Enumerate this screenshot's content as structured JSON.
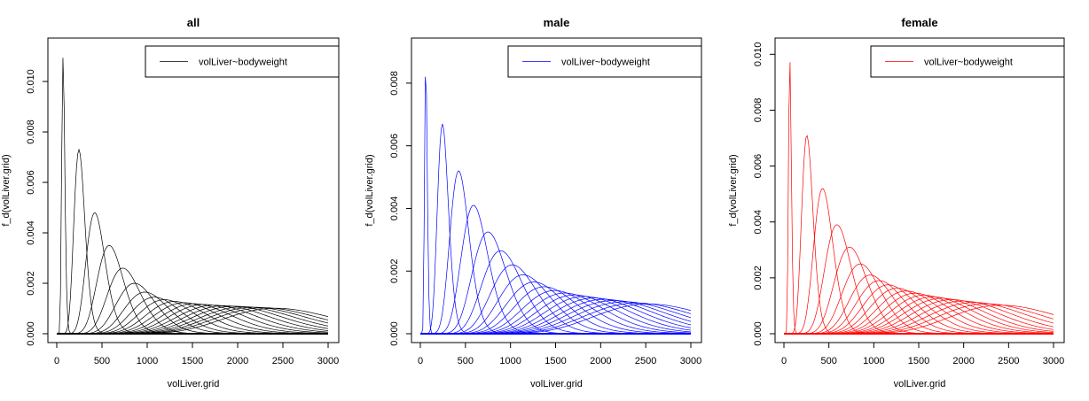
{
  "chart_data": [
    {
      "type": "line",
      "title": "all",
      "xlabel": "volLiver.grid",
      "ylabel": "f_d(volLiver.grid)",
      "xlim": [
        0,
        3000
      ],
      "ylim": [
        0,
        0.0113
      ],
      "xticks": [
        "0",
        "500",
        "1000",
        "1500",
        "2000",
        "2500",
        "3000"
      ],
      "yticks": [
        "0.000",
        "0.002",
        "0.004",
        "0.006",
        "0.008",
        "0.010"
      ],
      "legend": {
        "position": "top-right",
        "entries": [
          "volLiver~bodyweight"
        ]
      },
      "color": "#000000",
      "series": [
        {
          "mean": 70,
          "peak": 0.011
        },
        {
          "mean": 245,
          "peak": 0.0073
        },
        {
          "mean": 420,
          "peak": 0.0048
        },
        {
          "mean": 580,
          "peak": 0.0035
        },
        {
          "mean": 730,
          "peak": 0.0026
        },
        {
          "mean": 860,
          "peak": 0.002
        },
        {
          "mean": 975,
          "peak": 0.00165
        },
        {
          "mean": 1080,
          "peak": 0.00145
        },
        {
          "mean": 1190,
          "peak": 0.00135
        },
        {
          "mean": 1300,
          "peak": 0.00128
        },
        {
          "mean": 1410,
          "peak": 0.00123
        },
        {
          "mean": 1520,
          "peak": 0.00119
        },
        {
          "mean": 1630,
          "peak": 0.00116
        },
        {
          "mean": 1740,
          "peak": 0.00113
        },
        {
          "mean": 1850,
          "peak": 0.00111
        },
        {
          "mean": 1960,
          "peak": 0.00109
        },
        {
          "mean": 2070,
          "peak": 0.00107
        },
        {
          "mean": 2180,
          "peak": 0.00105
        },
        {
          "mean": 2290,
          "peak": 0.00103
        },
        {
          "mean": 2420,
          "peak": 0.00101
        }
      ]
    },
    {
      "type": "line",
      "title": "male",
      "xlabel": "volLiver.grid",
      "ylabel": "f_d(volLiver.grid)",
      "xlim": [
        0,
        3000
      ],
      "ylim": [
        0,
        0.0091
      ],
      "xticks": [
        "0",
        "500",
        "1000",
        "1500",
        "2000",
        "2500",
        "3000"
      ],
      "yticks": [
        "0.000",
        "0.002",
        "0.004",
        "0.006",
        "0.008"
      ],
      "legend": {
        "position": "top-right",
        "entries": [
          "volLiver~bodyweight"
        ]
      },
      "color": "#0000ff",
      "series": [
        {
          "mean": 60,
          "peak": 0.0088
        },
        {
          "mean": 245,
          "peak": 0.0067
        },
        {
          "mean": 425,
          "peak": 0.0052
        },
        {
          "mean": 590,
          "peak": 0.0041
        },
        {
          "mean": 750,
          "peak": 0.00325
        },
        {
          "mean": 890,
          "peak": 0.00265
        },
        {
          "mean": 1020,
          "peak": 0.0022
        },
        {
          "mean": 1140,
          "peak": 0.00188
        },
        {
          "mean": 1260,
          "peak": 0.00165
        },
        {
          "mean": 1375,
          "peak": 0.0015
        },
        {
          "mean": 1490,
          "peak": 0.00138
        },
        {
          "mean": 1600,
          "peak": 0.0013
        },
        {
          "mean": 1710,
          "peak": 0.00124
        },
        {
          "mean": 1820,
          "peak": 0.00119
        },
        {
          "mean": 1930,
          "peak": 0.00114
        },
        {
          "mean": 2040,
          "peak": 0.0011
        },
        {
          "mean": 2150,
          "peak": 0.00106
        },
        {
          "mean": 2270,
          "peak": 0.00102
        },
        {
          "mean": 2400,
          "peak": 0.00098
        },
        {
          "mean": 2530,
          "peak": 0.00095
        }
      ]
    },
    {
      "type": "line",
      "title": "female",
      "xlabel": "volLiver.grid",
      "ylabel": "f_d(volLiver.grid)",
      "xlim": [
        0,
        3000
      ],
      "ylim": [
        0,
        0.0102
      ],
      "xticks": [
        "0",
        "500",
        "1000",
        "1500",
        "2000",
        "2500",
        "3000"
      ],
      "yticks": [
        "0.000",
        "0.002",
        "0.004",
        "0.006",
        "0.008",
        "0.010"
      ],
      "legend": {
        "position": "top-right",
        "entries": [
          "volLiver~bodyweight"
        ]
      },
      "color": "#ff0000",
      "series": [
        {
          "mean": 65,
          "peak": 0.0099
        },
        {
          "mean": 255,
          "peak": 0.0071
        },
        {
          "mean": 430,
          "peak": 0.0052
        },
        {
          "mean": 590,
          "peak": 0.0039
        },
        {
          "mean": 730,
          "peak": 0.0031
        },
        {
          "mean": 850,
          "peak": 0.0025
        },
        {
          "mean": 960,
          "peak": 0.0021
        },
        {
          "mean": 1060,
          "peak": 0.0019
        },
        {
          "mean": 1160,
          "peak": 0.00175
        },
        {
          "mean": 1260,
          "peak": 0.00163
        },
        {
          "mean": 1360,
          "peak": 0.00153
        },
        {
          "mean": 1460,
          "peak": 0.00145
        },
        {
          "mean": 1560,
          "peak": 0.00138
        },
        {
          "mean": 1660,
          "peak": 0.00132
        },
        {
          "mean": 1760,
          "peak": 0.00127
        },
        {
          "mean": 1870,
          "peak": 0.00122
        },
        {
          "mean": 1990,
          "peak": 0.00117
        },
        {
          "mean": 2120,
          "peak": 0.00112
        },
        {
          "mean": 2260,
          "peak": 0.00107
        },
        {
          "mean": 2420,
          "peak": 0.00102
        }
      ]
    }
  ]
}
